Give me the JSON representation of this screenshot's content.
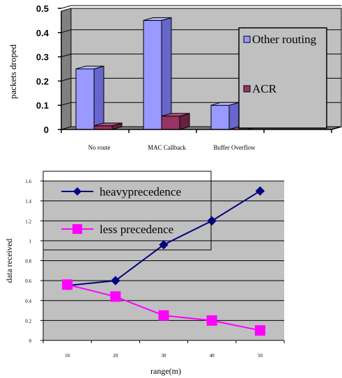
{
  "chart_data": [
    {
      "type": "bar",
      "style": "3d-column",
      "categories": [
        "No route",
        "MAC Callback",
        "Buffer Overflow",
        ""
      ],
      "series": [
        {
          "name": "Other routing",
          "values": [
            0.25,
            0.45,
            0.1,
            null
          ],
          "color": "#9999ff",
          "side_color": "#6666cc",
          "top_color": "#b8b8ff"
        },
        {
          "name": "ACR",
          "values": [
            0.015,
            0.055,
            0.0,
            null
          ],
          "color": "#993366",
          "side_color": "#66223f",
          "top_color": "#b3507f"
        }
      ],
      "ylabel": "packets droped",
      "xlabel": "",
      "ylim": [
        0,
        0.5
      ],
      "yticks": [
        "0",
        "0.1",
        "0.2",
        "0.3",
        "0.4",
        "0.5"
      ],
      "grid": true,
      "wall_color": "#c0c0c0",
      "floor_color": "#808080",
      "legend_position": "right"
    },
    {
      "type": "line",
      "x": [
        10,
        20,
        30,
        40,
        50
      ],
      "xticks": [
        "10",
        "20",
        "30",
        "40",
        "50"
      ],
      "series": [
        {
          "name": "heavyprecedence",
          "values": [
            0.55,
            0.6,
            0.96,
            1.2,
            1.5
          ],
          "color": "#000080",
          "marker": "diamond"
        },
        {
          "name": "less precedence",
          "values": [
            0.56,
            0.44,
            0.25,
            0.2,
            0.1
          ],
          "color": "#ff00ff",
          "marker": "square"
        }
      ],
      "xlabel": "range(m)",
      "ylabel": "data received",
      "ylim": [
        0,
        1.6
      ],
      "yticks": [
        "0",
        "0.2",
        "0.4",
        "0.6",
        "0.8",
        "1",
        "1.2",
        "1.4",
        "1.6"
      ],
      "grid": true,
      "plot_background": "#c0c0c0",
      "legend_position": "top-left"
    }
  ]
}
